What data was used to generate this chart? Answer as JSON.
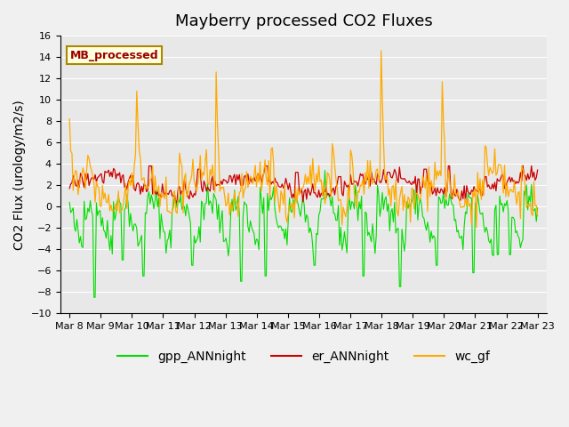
{
  "title": "Mayberry processed CO2 Fluxes",
  "ylabel": "CO2 Flux (urology/m2/s)",
  "ylim": [
    -10,
    16
  ],
  "yticks": [
    -10,
    -8,
    -6,
    -4,
    -2,
    0,
    2,
    4,
    6,
    8,
    10,
    12,
    14,
    16
  ],
  "date_labels": [
    "Mar 8",
    "Mar 9",
    "Mar 10",
    "Mar 11",
    "Mar 12",
    "Mar 13",
    "Mar 14",
    "Mar 15",
    "Mar 16",
    "Mar 17",
    "Mar 18",
    "Mar 19",
    "Mar 20",
    "Mar 21",
    "Mar 22",
    "Mar 23"
  ],
  "legend_label": "MB_processed",
  "series_labels": [
    "gpp_ANNnight",
    "er_ANNnight",
    "wc_gf"
  ],
  "series_colors": [
    "#00dd00",
    "#cc0000",
    "#ffaa00"
  ],
  "title_fontsize": 13,
  "axis_fontsize": 10,
  "tick_fontsize": 8,
  "legend_fontsize": 10,
  "n_points": 384,
  "seed": 42
}
